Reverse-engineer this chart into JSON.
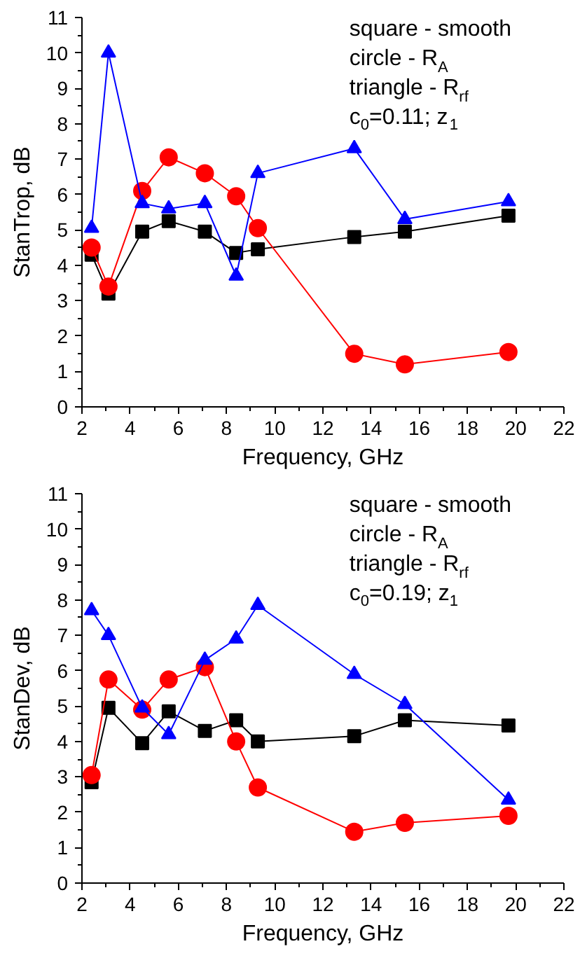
{
  "chart_data": [
    {
      "type": "line",
      "xlabel": "Frequency, GHz",
      "ylabel": "StanTrop, dB",
      "x": [
        2.4,
        3.1,
        4.5,
        5.6,
        7.1,
        8.4,
        9.3,
        13.3,
        15.4,
        19.7
      ],
      "series": [
        {
          "color": "#000000",
          "marker": "square",
          "values": [
            4.3,
            3.2,
            4.95,
            5.25,
            4.95,
            4.35,
            4.45,
            4.8,
            4.95,
            5.4
          ]
        },
        {
          "color": "#ff0000",
          "marker": "circle",
          "values": [
            4.5,
            3.4,
            6.1,
            7.05,
            6.6,
            5.95,
            5.05,
            1.5,
            1.2,
            1.55
          ]
        },
        {
          "color": "#0000ff",
          "marker": "triangle",
          "values": [
            5.05,
            10.0,
            5.75,
            5.6,
            5.75,
            3.7,
            6.6,
            7.3,
            5.3,
            5.8
          ]
        }
      ],
      "annotations": [
        "square - smooth",
        "circle - R$_{A}$",
        "triangle - R$_{rf}$",
        "c$_{0}$=0.11; z$_{1}$"
      ],
      "xlim": [
        2,
        22
      ],
      "xticks": [
        2,
        4,
        6,
        8,
        10,
        12,
        14,
        16,
        18,
        20,
        22
      ],
      "ylim": [
        0,
        11
      ],
      "yticks": [
        0,
        1,
        2,
        3,
        4,
        5,
        6,
        7,
        8,
        9,
        10,
        11
      ],
      "grid": false,
      "line_style": "solid"
    },
    {
      "type": "line",
      "xlabel": "Frequency, GHz",
      "ylabel": "StanDev, dB",
      "x": [
        2.4,
        3.1,
        4.5,
        5.6,
        7.1,
        8.4,
        9.3,
        13.3,
        15.4,
        19.7
      ],
      "series": [
        {
          "color": "#000000",
          "marker": "square",
          "values": [
            2.85,
            4.95,
            3.95,
            4.85,
            4.3,
            4.6,
            4.0,
            4.15,
            4.6,
            4.45
          ]
        },
        {
          "color": "#ff0000",
          "marker": "circle",
          "values": [
            3.05,
            5.75,
            4.9,
            5.75,
            6.1,
            4.0,
            2.7,
            1.45,
            1.7,
            1.9
          ]
        },
        {
          "color": "#0000ff",
          "marker": "triangle",
          "values": [
            7.7,
            7.0,
            4.95,
            4.2,
            6.3,
            6.9,
            7.85,
            5.9,
            5.05,
            2.35
          ]
        }
      ],
      "annotations": [
        "square - smooth",
        "circle - R$_{A}$",
        "triangle - R$_{rf}$",
        "c$_{0}$=0.19; z$_{1}$"
      ],
      "xlim": [
        2,
        22
      ],
      "xticks": [
        2,
        4,
        6,
        8,
        10,
        12,
        14,
        16,
        18,
        20,
        22
      ],
      "ylim": [
        0,
        11
      ],
      "yticks": [
        0,
        1,
        2,
        3,
        4,
        5,
        6,
        7,
        8,
        9,
        10,
        11
      ],
      "grid": false,
      "line_style": "solid"
    }
  ]
}
